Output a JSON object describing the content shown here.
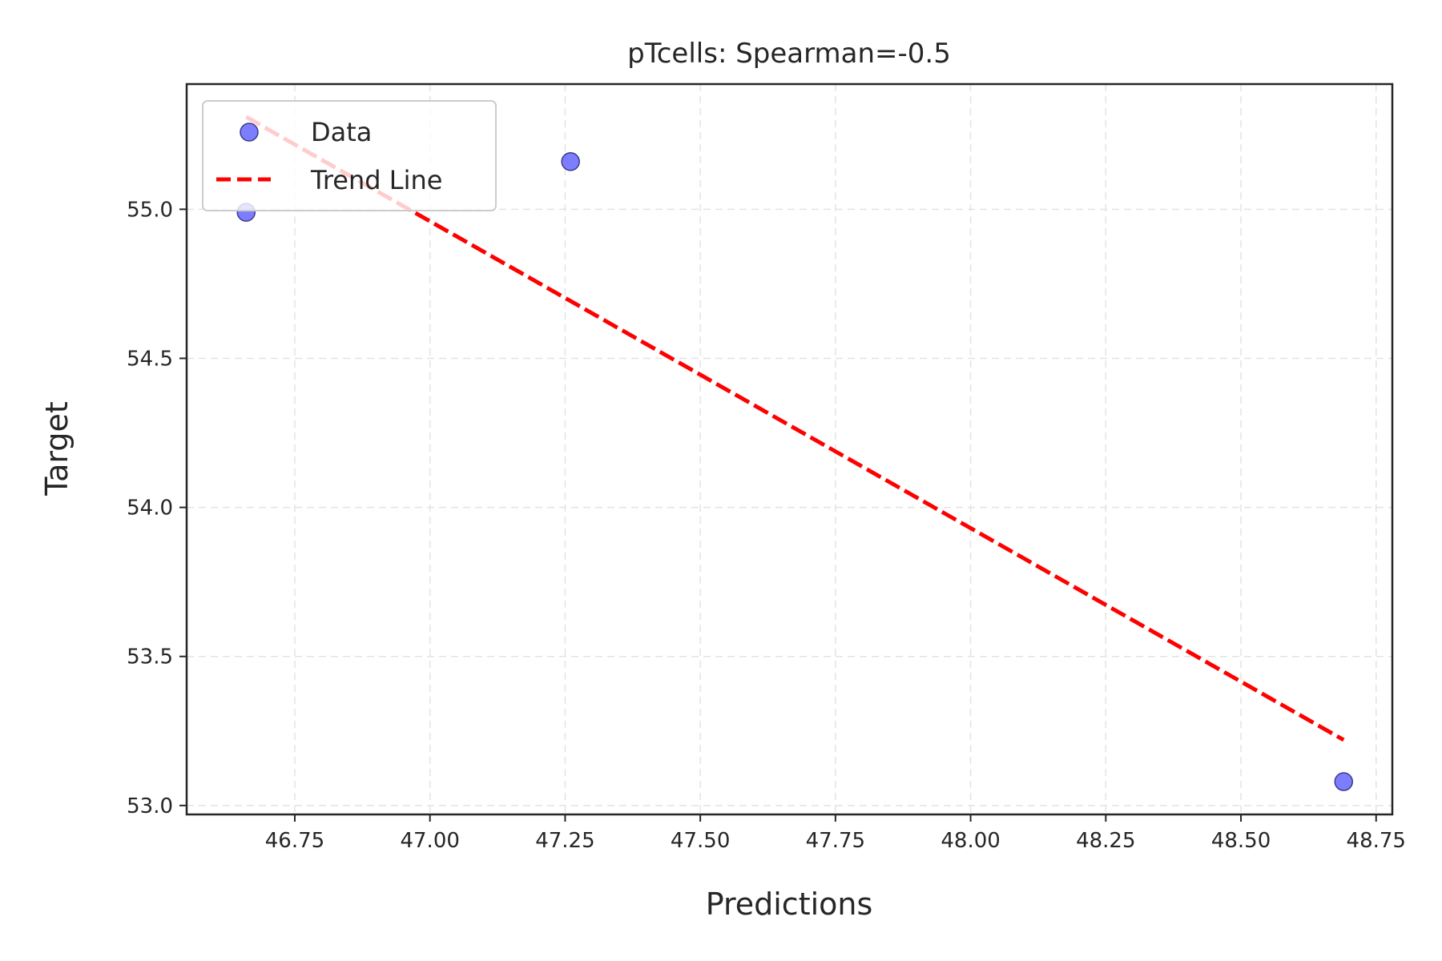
{
  "chart_data": {
    "type": "scatter",
    "title": "pTcells: Spearman=-0.5",
    "xlabel": "Predictions",
    "ylabel": "Target",
    "xlim": [
      46.55,
      48.78
    ],
    "ylim": [
      52.97,
      55.42
    ],
    "x_ticks": [
      46.75,
      47.0,
      47.25,
      47.5,
      47.75,
      48.0,
      48.25,
      48.5,
      48.75
    ],
    "x_tick_labels": [
      "46.75",
      "47.00",
      "47.25",
      "47.50",
      "47.75",
      "48.00",
      "48.25",
      "48.50",
      "48.75"
    ],
    "y_ticks": [
      53.0,
      53.5,
      54.0,
      54.5,
      55.0
    ],
    "y_tick_labels": [
      "53.0",
      "53.5",
      "54.0",
      "54.5",
      "55.0"
    ],
    "grid": true,
    "legend_position": "top-left",
    "series": [
      {
        "name": "Data",
        "kind": "scatter",
        "color": "#6666ff",
        "edge_color": "#3a3a8a",
        "points": [
          {
            "x": 46.66,
            "y": 54.99
          },
          {
            "x": 47.26,
            "y": 55.16
          },
          {
            "x": 48.69,
            "y": 53.08
          }
        ]
      },
      {
        "name": "Trend Line",
        "kind": "line",
        "style": "dashed",
        "color": "#ff0000",
        "points": [
          {
            "x": 46.66,
            "y": 55.31
          },
          {
            "x": 48.69,
            "y": 53.22
          }
        ]
      }
    ]
  }
}
